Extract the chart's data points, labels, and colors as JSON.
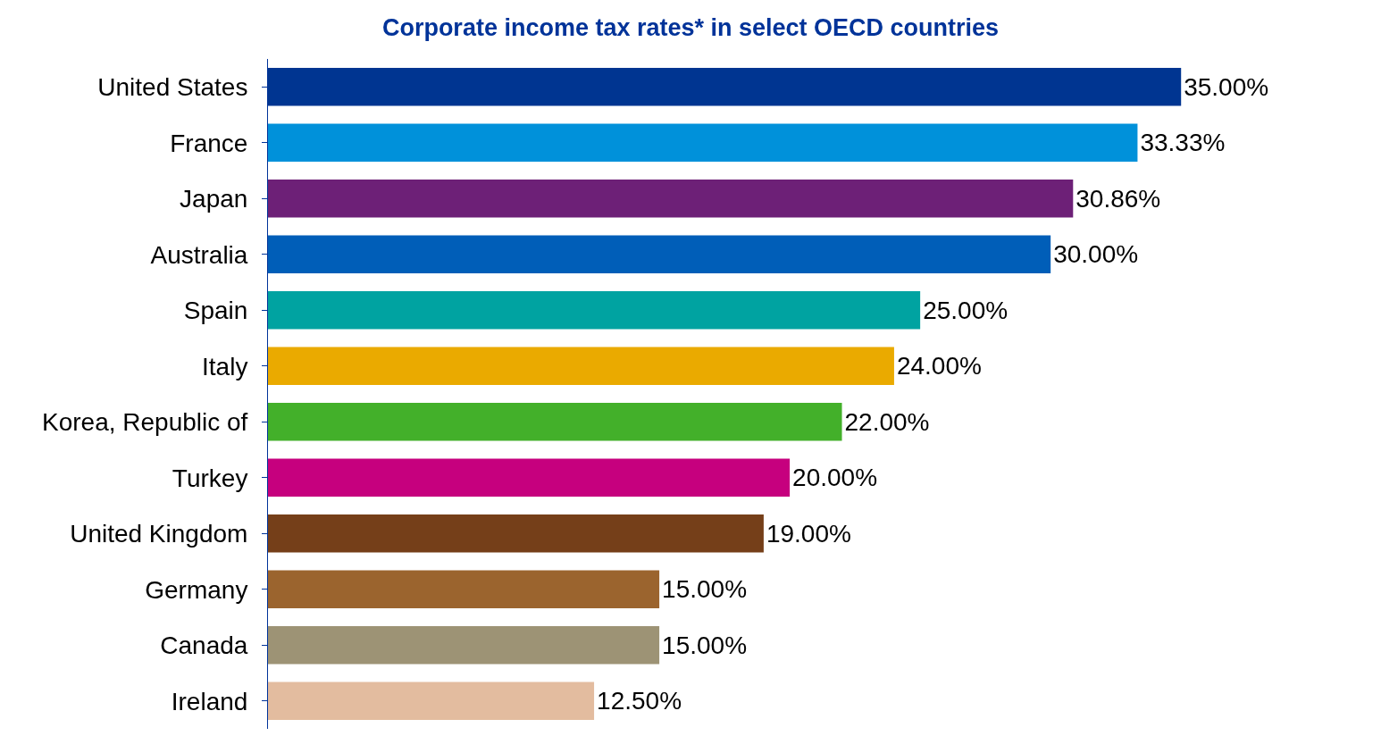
{
  "chart_data": {
    "type": "bar",
    "orientation": "horizontal",
    "title": "Corporate income tax rates* in select OECD countries",
    "categories": [
      "United States",
      "France",
      "Japan",
      "Australia",
      "Spain",
      "Italy",
      "Korea, Republic of",
      "Turkey",
      "United Kingdom",
      "Germany",
      "Canada",
      "Ireland"
    ],
    "values": [
      35,
      33.33,
      30.86,
      30,
      25,
      24,
      22,
      20,
      19,
      15,
      15,
      12.5
    ],
    "value_labels": [
      "35.00%",
      "33.33%",
      "30.86%",
      "30.00%",
      "25.00%",
      "24.00%",
      "22.00%",
      "20.00%",
      "19.00%",
      "15.00%",
      "15.00%",
      "12.50%"
    ],
    "colors": [
      "#003591",
      "#0091da",
      "#6d2077",
      "#005eb8",
      "#00a3a1",
      "#eaaa00",
      "#43b02a",
      "#c6007e",
      "#753f19",
      "#9b642e",
      "#9d9375",
      "#e3bc9f"
    ],
    "tick_labels": "y"
  }
}
